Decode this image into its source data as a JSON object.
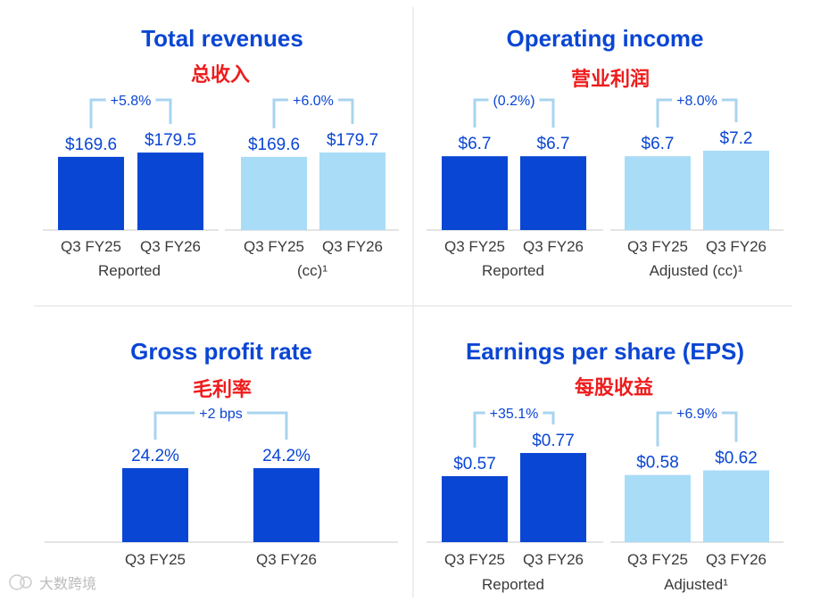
{
  "colors": {
    "dark": "#0a46d4",
    "light": "#a9dcf7",
    "bracket": "#a8d4ef",
    "title": "#0a46d4",
    "subtitle": "#ee1c1c"
  },
  "watermark": "大数跨境",
  "chart_data": [
    {
      "type": "bar",
      "title": "Total revenues",
      "subtitle": "总收入",
      "categories": [
        "Q3 FY25",
        "Q3 FY26",
        "Q3 FY25",
        "Q3 FY26"
      ],
      "values": [
        169.6,
        179.5,
        169.6,
        179.7
      ],
      "value_labels": [
        "$169.6",
        "$179.5",
        "$169.6",
        "$179.7"
      ],
      "bar_colors": [
        "dark",
        "dark",
        "light",
        "light"
      ],
      "groups": [
        {
          "label": "Reported",
          "change": "+5.8%"
        },
        {
          "label": "(cc)¹",
          "change": "+6.0%"
        }
      ]
    },
    {
      "type": "bar",
      "title": "Operating income",
      "subtitle": "营业利润",
      "categories": [
        "Q3 FY25",
        "Q3 FY26",
        "Q3 FY25",
        "Q3 FY26"
      ],
      "values": [
        6.7,
        6.7,
        6.7,
        7.2
      ],
      "value_labels": [
        "$6.7",
        "$6.7",
        "$6.7",
        "$7.2"
      ],
      "bar_colors": [
        "dark",
        "dark",
        "light",
        "light"
      ],
      "groups": [
        {
          "label": "Reported",
          "change": "(0.2%)"
        },
        {
          "label": "Adjusted (cc)¹",
          "change": "+8.0%"
        }
      ]
    },
    {
      "type": "bar",
      "title": "Gross profit rate",
      "subtitle": "毛利率",
      "categories": [
        "Q3 FY25",
        "Q3 FY26"
      ],
      "values": [
        24.2,
        24.2
      ],
      "value_labels": [
        "24.2%",
        "24.2%"
      ],
      "bar_colors": [
        "dark",
        "dark"
      ],
      "groups": [
        {
          "label": "",
          "change": "+2 bps"
        }
      ]
    },
    {
      "type": "bar",
      "title": "Earnings per share (EPS)",
      "subtitle": "每股收益",
      "categories": [
        "Q3 FY25",
        "Q3 FY26",
        "Q3 FY25",
        "Q3 FY26"
      ],
      "values": [
        0.57,
        0.77,
        0.58,
        0.62
      ],
      "value_labels": [
        "$0.57",
        "$0.77",
        "$0.58",
        "$0.62"
      ],
      "bar_colors": [
        "dark",
        "dark",
        "light",
        "light"
      ],
      "groups": [
        {
          "label": "Reported",
          "change": "+35.1%"
        },
        {
          "label": "Adjusted¹",
          "change": "+6.9%"
        }
      ]
    }
  ]
}
